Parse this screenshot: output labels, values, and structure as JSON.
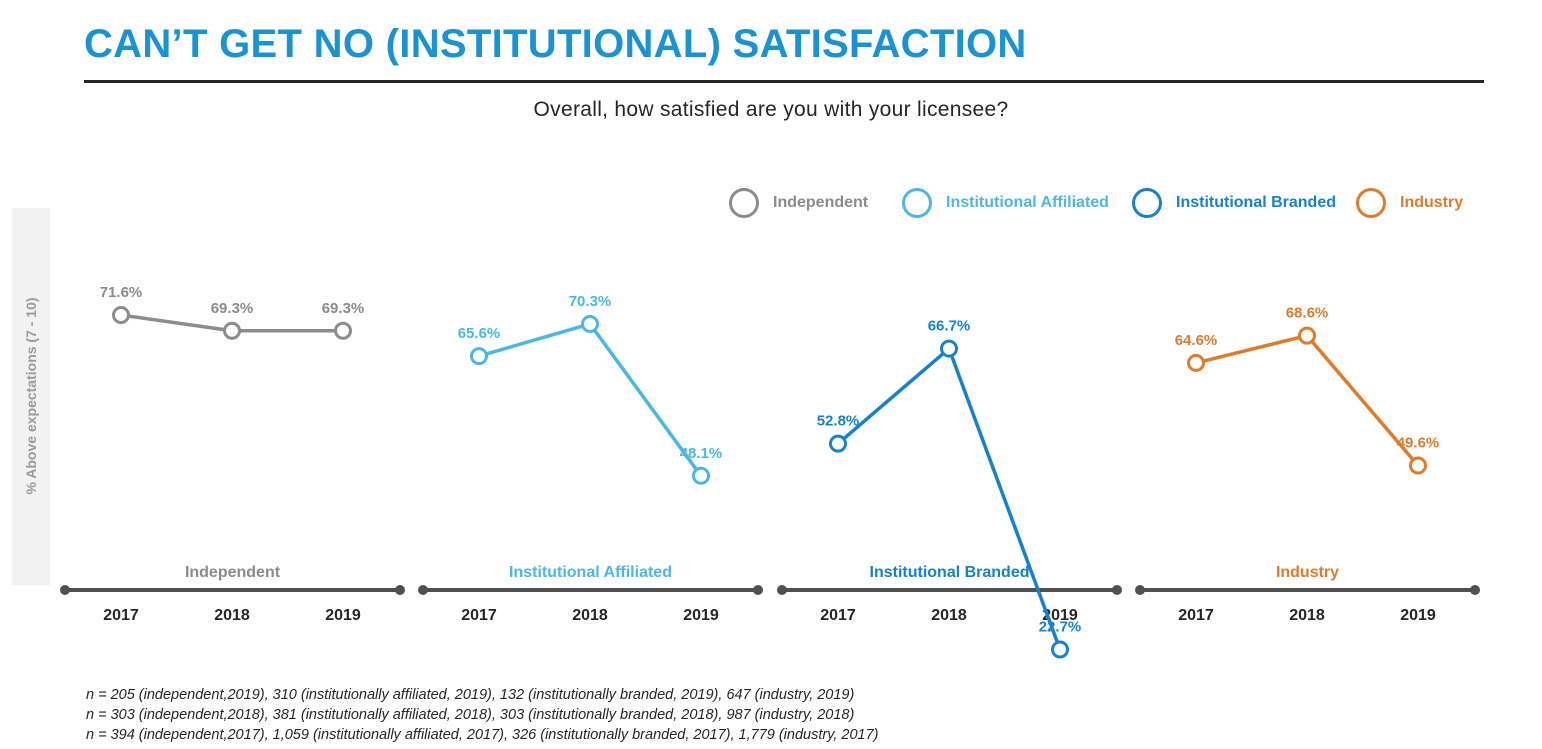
{
  "header": {
    "title": "CAN’T GET NO (INSTITUTIONAL) SATISFACTION",
    "subtitle": "Overall, how satisfied are you with your licensee?"
  },
  "colors": {
    "independent": "#8c8c8c",
    "institutional_affiliated": "#4ab7e6",
    "institutional_branded": "#1682c9",
    "industry": "#e07b2c",
    "axis": "#505050",
    "text": "#262626",
    "title": "#1b93d3"
  },
  "legend": [
    {
      "label": "Independent",
      "color": "#8c8c8c"
    },
    {
      "label": "Institutional Affiliated",
      "color": "#4ab7e6"
    },
    {
      "label": "Institutional Branded",
      "color": "#1682c9"
    },
    {
      "label": "Industry",
      "color": "#e07b2c"
    }
  ],
  "chart_data": {
    "type": "line",
    "ylabel": "% Above expectations (7 - 10)",
    "x": [
      "2017",
      "2018",
      "2019"
    ],
    "value_unit": "%",
    "series": [
      {
        "name": "Independent",
        "values": [
          71.6,
          69.3,
          69.3
        ]
      },
      {
        "name": "Institutional Affiliated",
        "values": [
          65.6,
          70.3,
          48.1
        ]
      },
      {
        "name": "Institutional Branded",
        "values": [
          52.8,
          66.7,
          22.7
        ]
      },
      {
        "name": "Industry",
        "values": [
          64.6,
          68.6,
          49.6
        ]
      }
    ]
  },
  "footnotes": [
    "n = 205 (independent,2019), 310 (institutionally affiliated, 2019), 132 (institutionally branded, 2019), 647 (industry, 2019)",
    "n = 303 (independent,2018), 381 (institutionally affiliated, 2018), 303 (institutionally branded, 2018), 987 (industry, 2018)",
    "n = 394 (independent,2017), 1,059 (institutionally affiliated, 2017), 326 (institutionally branded, 2017), 1,779 (industry, 2017)"
  ]
}
